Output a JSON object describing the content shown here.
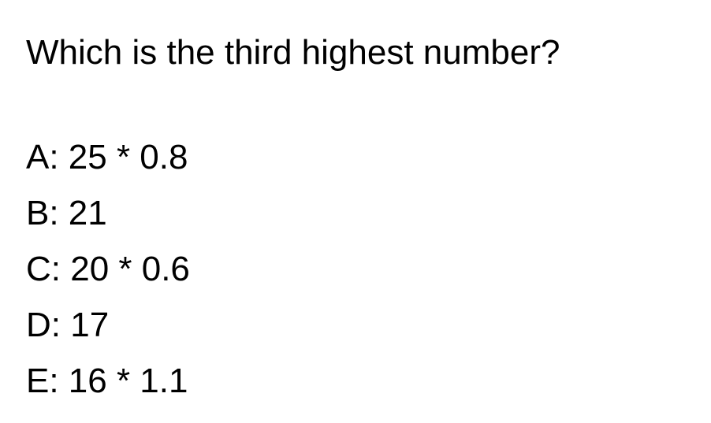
{
  "question": "Which is the third highest number?",
  "options": [
    {
      "label": "A: 25 * 0.8"
    },
    {
      "label": "B: 21"
    },
    {
      "label": "C: 20 * 0.6"
    },
    {
      "label": "D: 17"
    },
    {
      "label": "E: 16 * 1.1"
    }
  ]
}
